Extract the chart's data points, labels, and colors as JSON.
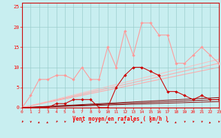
{
  "bg_color": "#c8eef0",
  "grid_color": "#99cccc",
  "x_label": "Vent moyen/en rafales ( km/h )",
  "x_ticks": [
    0,
    1,
    2,
    3,
    4,
    5,
    6,
    7,
    8,
    9,
    10,
    11,
    12,
    13,
    14,
    15,
    16,
    17,
    18,
    19,
    20,
    21,
    22,
    23
  ],
  "ylim": [
    0,
    26
  ],
  "xlim": [
    0,
    23
  ],
  "y_ticks": [
    0,
    5,
    10,
    15,
    20,
    25
  ],
  "series": [
    {
      "x": [
        0,
        1,
        2,
        3,
        4,
        5,
        6,
        7,
        8,
        9,
        10,
        11,
        12,
        13,
        14,
        15,
        16,
        17,
        18,
        19,
        20,
        21,
        22,
        23
      ],
      "y": [
        0,
        3,
        7,
        7,
        8,
        8,
        7,
        10,
        7,
        7,
        15,
        10,
        19,
        13,
        21,
        21,
        18,
        18,
        11,
        11,
        13,
        15,
        13,
        11
      ],
      "color": "#ff9999",
      "linewidth": 0.8,
      "marker": "D",
      "markersize": 2.0,
      "zorder": 3
    },
    {
      "x": [
        0,
        1,
        2,
        3,
        4,
        5,
        6,
        7,
        8,
        9,
        10,
        11,
        12,
        13,
        14,
        15,
        16,
        17,
        18,
        19,
        20,
        21,
        22,
        23
      ],
      "y": [
        0,
        0,
        0,
        0,
        1,
        1,
        2,
        2,
        2,
        0,
        0,
        5,
        8,
        10,
        10,
        9,
        8,
        4,
        4,
        3,
        2,
        3,
        2,
        2
      ],
      "color": "#cc0000",
      "linewidth": 0.8,
      "marker": "D",
      "markersize": 2.0,
      "zorder": 4
    },
    {
      "x": [
        0,
        23
      ],
      "y": [
        0,
        11.0
      ],
      "color": "#ffaaaa",
      "linewidth": 0.8,
      "zorder": 1
    },
    {
      "x": [
        0,
        23
      ],
      "y": [
        0,
        10.0
      ],
      "color": "#ffaaaa",
      "linewidth": 0.8,
      "zorder": 1
    },
    {
      "x": [
        0,
        23
      ],
      "y": [
        0,
        12.0
      ],
      "color": "#ffbbbb",
      "linewidth": 0.7,
      "zorder": 1
    },
    {
      "x": [
        0,
        23
      ],
      "y": [
        0,
        2.5
      ],
      "color": "#880000",
      "linewidth": 0.7,
      "zorder": 2
    },
    {
      "x": [
        0,
        23
      ],
      "y": [
        0,
        2.0
      ],
      "color": "#880000",
      "linewidth": 0.7,
      "zorder": 2
    },
    {
      "x": [
        0,
        23
      ],
      "y": [
        0,
        1.5
      ],
      "color": "#880000",
      "linewidth": 0.7,
      "zorder": 2
    }
  ],
  "arrows": {
    "x": [
      0,
      1,
      2,
      3,
      4,
      5,
      6,
      7,
      8,
      9,
      10,
      11,
      12,
      13,
      14,
      15,
      16,
      17,
      18,
      19,
      20,
      21,
      22,
      23
    ],
    "color": "#cc0000",
    "angles_deg": [
      225,
      200,
      250,
      250,
      230,
      210,
      215,
      220,
      250,
      210,
      250,
      250,
      240,
      215,
      250,
      210,
      240,
      210,
      250,
      210,
      215,
      215,
      240,
      210
    ]
  }
}
